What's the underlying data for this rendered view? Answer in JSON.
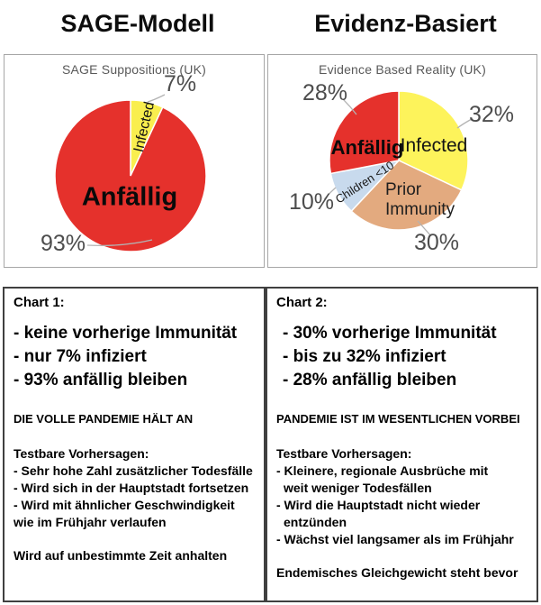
{
  "header": {
    "left_title": "SAGE-Modell",
    "right_title": "Evidenz-Basiert"
  },
  "chart_data": [
    {
      "type": "pie",
      "title": "SAGE Suppositions (UK)",
      "start": "12-o'clock",
      "direction": "clockwise",
      "slices": [
        {
          "label": "Infected",
          "value": 7,
          "pct_label": "7%",
          "color": "#f9ee4e"
        },
        {
          "label": "Anfällig",
          "value": 93,
          "pct_label": "93%",
          "color": "#e5312c"
        }
      ]
    },
    {
      "type": "pie",
      "title": "Evidence Based Reality (UK)",
      "start": "12-o'clock",
      "direction": "clockwise",
      "slices": [
        {
          "label": "Infected",
          "value": 32,
          "pct_label": "32%",
          "color": "#fdf35b"
        },
        {
          "label": "Prior Immunity",
          "value": 30,
          "pct_label": "30%",
          "color": "#e3aa7f"
        },
        {
          "label": "Children <10",
          "value": 10,
          "pct_label": "10%",
          "color": "#c8daed"
        },
        {
          "label": "Anfällig",
          "value": 28,
          "pct_label": "28%",
          "color": "#e5312c"
        }
      ]
    }
  ],
  "colors": {
    "pct_label_gray": "#4d4d4d",
    "chart_title_gray": "#595959"
  },
  "panel1": {
    "heading": "Chart 1:",
    "bullets": [
      "- keine vorherige Immunität",
      "- nur 7% infiziert",
      "- 93% anfällig bleiben"
    ],
    "statement": "DIE VOLLE PANDEMIE HÄLT AN",
    "predictions_heading": "Testbare Vorhersagen:",
    "predictions": [
      "- Sehr hohe Zahl zusätzlicher Todesfälle",
      "- Wird sich in der Hauptstadt fortsetzen",
      "- Wird mit ähnlicher Geschwindigkeit",
      "wie im Frühjahr verlaufen"
    ],
    "conclusion": "Wird auf unbestimmte Zeit anhalten"
  },
  "panel2": {
    "heading": "Chart 2:",
    "bullets": [
      "- 30% vorherige Immunität",
      "- bis zu 32% infiziert",
      "- 28% anfällig bleiben"
    ],
    "statement": "PANDEMIE IST IM WESENTLICHEN VORBEI",
    "predictions_heading": "Testbare Vorhersagen:",
    "predictions": [
      "- Kleinere, regionale Ausbrüche mit",
      "weit weniger Todesfällen",
      "- Wird die Hauptstadt nicht wieder",
      "entzünden",
      "- Wächst viel langsamer als im Frühjahr"
    ],
    "conclusion": "Endemisches Gleichgewicht steht bevor"
  }
}
